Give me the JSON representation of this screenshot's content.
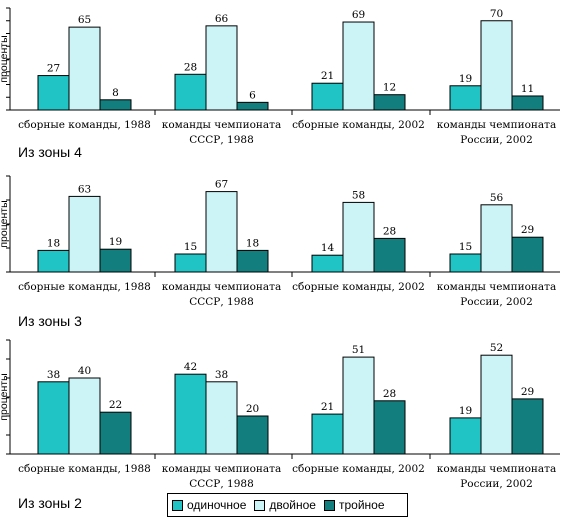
{
  "colors": {
    "single": "#20c4c4",
    "double": "#ccf4f6",
    "triple": "#127e7e"
  },
  "chart_data": [
    {
      "type": "bar",
      "title": "Из зоны 4",
      "ylabel": "проценты",
      "categories": [
        "сборные команды, 1988",
        "команды чемпионата СССР, 1988",
        "сборные команды, 2002",
        "команды чемпионата России, 2002"
      ],
      "category_lines": [
        [
          "сборные команды, 1988"
        ],
        [
          "команды чемпионата",
          "СССР, 1988"
        ],
        [
          "сборные команды, 2002"
        ],
        [
          "команды чемпионата",
          "России, 2002"
        ]
      ],
      "series": [
        {
          "name": "одиночное",
          "values": [
            27,
            28,
            21,
            19
          ]
        },
        {
          "name": "двойное",
          "values": [
            65,
            66,
            69,
            70
          ]
        },
        {
          "name": "тройное",
          "values": [
            8,
            6,
            12,
            11
          ]
        }
      ],
      "ylim": [
        0,
        80
      ]
    },
    {
      "type": "bar",
      "title": "Из зоны 3",
      "ylabel": "проценты",
      "categories": [
        "сборные команды, 1988",
        "команды чемпионата СССР, 1988",
        "сборные команды, 2002",
        "команды чемпионата России, 2002"
      ],
      "category_lines": [
        [
          "сборные команды, 1988"
        ],
        [
          "команды чемпионата",
          "СССР, 1988"
        ],
        [
          "сборные команды, 2002"
        ],
        [
          "команды чемпионата",
          "России, 2002"
        ]
      ],
      "series": [
        {
          "name": "одиночное",
          "values": [
            18,
            15,
            14,
            15
          ]
        },
        {
          "name": "двойное",
          "values": [
            63,
            67,
            58,
            56
          ]
        },
        {
          "name": "тройное",
          "values": [
            19,
            18,
            28,
            29
          ]
        }
      ],
      "ylim": [
        0,
        80
      ]
    },
    {
      "type": "bar",
      "title": "Из зоны 2",
      "ylabel": "проценты",
      "categories": [
        "сборные команды, 1988",
        "команды чемпионата СССР, 1988",
        "сборные команды, 2002",
        "команды чемпионата России, 2002"
      ],
      "category_lines": [
        [
          "сборные команды, 1988"
        ],
        [
          "команды чемпионата",
          "СССР, 1988"
        ],
        [
          "сборные команды, 2002"
        ],
        [
          "команды чемпионата",
          "России, 2002"
        ]
      ],
      "series": [
        {
          "name": "одиночное",
          "values": [
            38,
            42,
            21,
            19
          ]
        },
        {
          "name": "двойное",
          "values": [
            40,
            38,
            51,
            52
          ]
        },
        {
          "name": "тройное",
          "values": [
            22,
            20,
            28,
            29
          ]
        }
      ],
      "ylim": [
        0,
        60
      ]
    }
  ],
  "legend": {
    "items": [
      {
        "label": "одиночное",
        "color": "#20c4c4"
      },
      {
        "label": "двойное",
        "color": "#ccf4f6"
      },
      {
        "label": "тройное",
        "color": "#127e7e"
      }
    ]
  }
}
